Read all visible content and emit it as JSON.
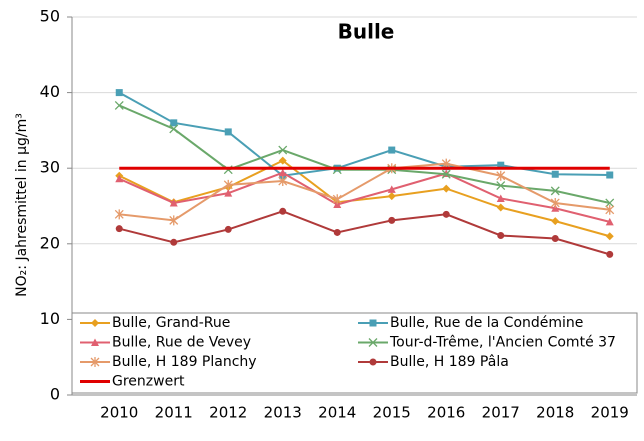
{
  "chart_data": {
    "type": "line",
    "title": "Bulle",
    "y_label": "NO₂: Jahresmittel in µg/m³",
    "categories": [
      "2010",
      "2011",
      "2012",
      "2013",
      "2014",
      "2015",
      "2016",
      "2017",
      "2018",
      "2019"
    ],
    "ylim": [
      0,
      50
    ],
    "yticks": [
      0,
      10,
      20,
      30,
      40,
      50
    ],
    "grid": true,
    "series": [
      {
        "name": "Bulle, Grand-Rue",
        "color": "#e8a020",
        "marker": "diamond",
        "values": [
          29,
          25.5,
          27.5,
          31,
          25.5,
          26.3,
          27.3,
          24.8,
          23,
          21
        ]
      },
      {
        "name": "Bulle, Rue de la Condémine",
        "color": "#4a9fb5",
        "marker": "square",
        "values": [
          40,
          36,
          34.8,
          29,
          30,
          32.4,
          30.2,
          30.4,
          29.2,
          29.1
        ]
      },
      {
        "name": "Bulle, Rue de Vevey",
        "color": "#e06070",
        "marker": "triangle",
        "values": [
          28.6,
          25.4,
          26.7,
          29.4,
          25.2,
          27.2,
          29.3,
          26,
          24.7,
          22.9
        ]
      },
      {
        "name": "Tour-d-Trême, l'Ancien Comté 37",
        "color": "#6aa86a",
        "marker": "x",
        "values": [
          38.3,
          35.2,
          29.8,
          32.4,
          29.8,
          29.8,
          29.2,
          27.7,
          27,
          25.4
        ]
      },
      {
        "name": "Bulle, H 189 Planchy",
        "color": "#e59a6a",
        "marker": "star",
        "values": [
          23.9,
          23.1,
          27.8,
          28.3,
          25.9,
          30,
          30.6,
          29,
          25.4,
          24.5
        ]
      },
      {
        "name": "Bulle, H 189 Pâla",
        "color": "#b03a3a",
        "marker": "circle",
        "values": [
          22,
          20.2,
          21.9,
          24.3,
          21.5,
          23.1,
          23.9,
          21.1,
          20.7,
          18.6
        ]
      },
      {
        "name": "Grenzwert",
        "color": "#e00000",
        "marker": "none",
        "values": [
          30,
          30,
          30,
          30,
          30,
          30,
          30,
          30,
          30,
          30
        ]
      }
    ]
  }
}
